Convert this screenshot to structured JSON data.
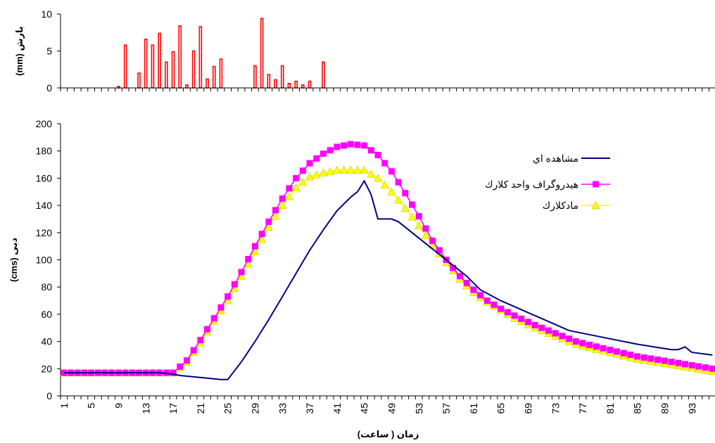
{
  "chart_data": [
    {
      "type": "bar",
      "panel": "top",
      "ylabel": "بارش (mm)",
      "ylim": [
        0,
        10
      ],
      "yticks": [
        0,
        5,
        10
      ],
      "x": [
        9,
        10,
        12,
        13,
        14,
        15,
        16,
        17,
        18,
        19,
        20,
        21,
        22,
        23,
        24,
        29,
        30,
        31,
        32,
        33,
        34,
        35,
        36,
        37,
        39
      ],
      "values": [
        0.2,
        5.8,
        2.0,
        6.6,
        5.8,
        7.4,
        3.5,
        4.9,
        8.4,
        0.4,
        5.0,
        8.3,
        1.2,
        2.9,
        3.9,
        3.0,
        9.4,
        1.8,
        1.1,
        3.0,
        0.6,
        0.9,
        0.4,
        0.9,
        3.5
      ],
      "color": "#ff0000",
      "grid": false
    },
    {
      "type": "line",
      "panel": "bottom",
      "xlabel": "زمان (   ساعت)",
      "ylabel": "دبی  (cms)",
      "ylim": [
        0,
        200
      ],
      "yticks": [
        0,
        20,
        40,
        60,
        80,
        100,
        120,
        140,
        160,
        180,
        200
      ],
      "xlim": [
        1,
        96
      ],
      "xticks": [
        1,
        5,
        9,
        13,
        17,
        21,
        25,
        29,
        33,
        37,
        41,
        45,
        49,
        53,
        57,
        61,
        65,
        69,
        73,
        77,
        81,
        85,
        89,
        93
      ],
      "legend_position": "top-right",
      "grid": false,
      "series": [
        {
          "name": "مشاهده اي",
          "color": "#000080",
          "marker": "none",
          "x": [
            1,
            15,
            17,
            18,
            20,
            22,
            24,
            25,
            27,
            29,
            31,
            33,
            35,
            37,
            39,
            41,
            43,
            44,
            45,
            46,
            47,
            48,
            49,
            50,
            52,
            54,
            57,
            60,
            62,
            65,
            70,
            75,
            80,
            85,
            90,
            91,
            92,
            93,
            96
          ],
          "y": [
            17,
            17,
            16,
            15,
            14,
            13,
            12,
            12,
            25,
            40,
            56,
            73,
            90,
            107,
            122,
            136,
            146,
            150,
            158,
            148,
            130,
            130,
            130,
            128,
            120,
            112,
            100,
            88,
            78,
            70,
            59,
            48,
            43,
            38,
            34,
            34,
            36,
            32,
            30
          ]
        },
        {
          "name": "هيدروگراف واحد كلارك",
          "color": "#ff00ff",
          "marker": "square",
          "x": [
            1,
            17,
            19,
            21,
            23,
            25,
            27,
            29,
            31,
            33,
            35,
            37,
            39,
            41,
            43,
            45,
            47,
            49,
            51,
            53,
            55,
            57,
            59,
            61,
            63,
            65,
            67,
            70,
            73,
            76,
            80,
            85,
            90,
            96
          ],
          "y": [
            17,
            17,
            26,
            41,
            57,
            73,
            91,
            110,
            128,
            145,
            160,
            171,
            178,
            183,
            185,
            184,
            177,
            165,
            149,
            132,
            114,
            100,
            88,
            78,
            70,
            64,
            59,
            52,
            46,
            40,
            35,
            29,
            25,
            20
          ]
        },
        {
          "name": "مادكلارك",
          "color": "#ffff00",
          "marker": "triangle",
          "x": [
            1,
            17,
            19,
            21,
            23,
            25,
            27,
            29,
            31,
            33,
            35,
            37,
            39,
            41,
            43,
            45,
            47,
            49,
            51,
            53,
            55,
            57,
            59,
            61,
            63,
            65,
            67,
            70,
            73,
            76,
            80,
            85,
            90,
            96
          ],
          "y": [
            17,
            17,
            25,
            39,
            55,
            70,
            88,
            106,
            124,
            140,
            153,
            161,
            164,
            166,
            166,
            166,
            160,
            150,
            138,
            125,
            111,
            98,
            86,
            76,
            69,
            63,
            57,
            50,
            44,
            38,
            33,
            27,
            23,
            18
          ]
        }
      ]
    }
  ]
}
